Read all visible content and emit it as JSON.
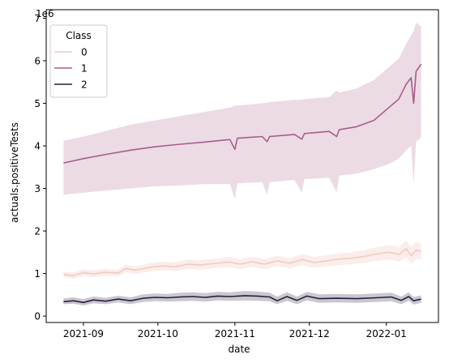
{
  "chart_data": {
    "type": "line",
    "xlabel": "date",
    "ylabel": "actuals.positiveTests",
    "y_offset_text": "1e6",
    "ylim": [
      -0.15,
      7.2
    ],
    "yticks": [
      0,
      1,
      2,
      3,
      4,
      5,
      6,
      7
    ],
    "xlim": [
      "2021-08-17",
      "2022-01-22"
    ],
    "xticks": [
      "2021-09-01",
      "2021-10-01",
      "2021-11-01",
      "2021-12-01",
      "2022-01-01"
    ],
    "xtick_labels": [
      "2021-09",
      "2021-10",
      "2021-11",
      "2021-12",
      "2022-01"
    ],
    "grid": false,
    "legend": {
      "title": "Class",
      "placement": "upper-left"
    },
    "series": [
      {
        "name": "0",
        "color": "#f0cbc4",
        "band_opacity": 0.35,
        "points": [
          [
            "2021-08-24",
            0.98,
            0.92,
            1.05
          ],
          [
            "2021-08-28",
            0.95,
            0.88,
            1.02
          ],
          [
            "2021-09-01",
            1.02,
            0.94,
            1.1
          ],
          [
            "2021-09-05",
            0.99,
            0.91,
            1.07
          ],
          [
            "2021-09-10",
            1.03,
            0.95,
            1.11
          ],
          [
            "2021-09-15",
            1.01,
            0.93,
            1.09
          ],
          [
            "2021-09-18",
            1.12,
            1.03,
            1.21
          ],
          [
            "2021-09-22",
            1.08,
            0.99,
            1.17
          ],
          [
            "2021-09-28",
            1.15,
            1.05,
            1.25
          ],
          [
            "2021-10-03",
            1.18,
            1.08,
            1.28
          ],
          [
            "2021-10-08",
            1.16,
            1.06,
            1.26
          ],
          [
            "2021-10-13",
            1.22,
            1.11,
            1.33
          ],
          [
            "2021-10-18",
            1.2,
            1.09,
            1.31
          ],
          [
            "2021-10-24",
            1.24,
            1.13,
            1.35
          ],
          [
            "2021-10-30",
            1.27,
            1.15,
            1.39
          ],
          [
            "2021-11-03",
            1.22,
            1.1,
            1.34
          ],
          [
            "2021-11-08",
            1.28,
            1.16,
            1.4
          ],
          [
            "2021-11-13",
            1.22,
            1.1,
            1.34
          ],
          [
            "2021-11-18",
            1.3,
            1.18,
            1.42
          ],
          [
            "2021-11-23",
            1.24,
            1.12,
            1.36
          ],
          [
            "2021-11-28",
            1.33,
            1.2,
            1.46
          ],
          [
            "2021-12-03",
            1.26,
            1.13,
            1.39
          ],
          [
            "2021-12-08",
            1.3,
            1.17,
            1.43
          ],
          [
            "2021-12-13",
            1.34,
            1.2,
            1.48
          ],
          [
            "2021-12-18",
            1.36,
            1.22,
            1.5
          ],
          [
            "2021-12-23",
            1.4,
            1.25,
            1.55
          ],
          [
            "2021-12-28",
            1.46,
            1.3,
            1.62
          ],
          [
            "2022-01-02",
            1.5,
            1.33,
            1.67
          ],
          [
            "2022-01-06",
            1.45,
            1.28,
            1.62
          ],
          [
            "2022-01-09",
            1.58,
            1.38,
            1.78
          ],
          [
            "2022-01-11",
            1.42,
            1.22,
            1.62
          ],
          [
            "2022-01-13",
            1.55,
            1.35,
            1.75
          ],
          [
            "2022-01-15",
            1.52,
            1.33,
            1.71
          ]
        ]
      },
      {
        "name": "1",
        "color": "#a75d8a",
        "band_opacity": 0.22,
        "points": [
          [
            "2021-08-24",
            3.6,
            2.85,
            4.12
          ],
          [
            "2021-09-01",
            3.7,
            2.9,
            4.22
          ],
          [
            "2021-09-10",
            3.8,
            2.95,
            4.35
          ],
          [
            "2021-09-20",
            3.9,
            3.0,
            4.5
          ],
          [
            "2021-09-30",
            3.98,
            3.05,
            4.6
          ],
          [
            "2021-10-10",
            4.04,
            3.07,
            4.7
          ],
          [
            "2021-10-20",
            4.09,
            3.1,
            4.8
          ],
          [
            "2021-10-30",
            4.15,
            3.1,
            4.9
          ],
          [
            "2021-11-01",
            3.92,
            2.75,
            4.95
          ],
          [
            "2021-11-02",
            4.18,
            3.12,
            4.95
          ],
          [
            "2021-11-12",
            4.22,
            3.15,
            5.0
          ],
          [
            "2021-11-14",
            4.1,
            2.85,
            5.02
          ],
          [
            "2021-11-15",
            4.22,
            3.15,
            5.03
          ],
          [
            "2021-11-25",
            4.27,
            3.2,
            5.08
          ],
          [
            "2021-11-28",
            4.16,
            2.9,
            5.08
          ],
          [
            "2021-11-29",
            4.29,
            3.22,
            5.1
          ],
          [
            "2021-12-09",
            4.34,
            3.25,
            5.15
          ],
          [
            "2021-12-12",
            4.22,
            2.9,
            5.3
          ],
          [
            "2021-12-13",
            4.38,
            3.3,
            5.25
          ],
          [
            "2021-12-20",
            4.45,
            3.35,
            5.35
          ],
          [
            "2021-12-27",
            4.6,
            3.45,
            5.55
          ],
          [
            "2022-01-03",
            4.95,
            3.6,
            5.9
          ],
          [
            "2022-01-06",
            5.1,
            3.7,
            6.05
          ],
          [
            "2022-01-09",
            5.45,
            3.9,
            6.4
          ],
          [
            "2022-01-11",
            5.6,
            4.0,
            6.6
          ],
          [
            "2022-01-12",
            5.0,
            3.1,
            6.7
          ],
          [
            "2022-01-13",
            5.75,
            4.1,
            6.9
          ],
          [
            "2022-01-15",
            5.92,
            4.2,
            6.8
          ]
        ]
      },
      {
        "name": "2",
        "color": "#2b1e3e",
        "band_opacity": 0.25,
        "points": [
          [
            "2021-08-24",
            0.34,
            0.28,
            0.42
          ],
          [
            "2021-08-28",
            0.36,
            0.29,
            0.44
          ],
          [
            "2021-09-01",
            0.32,
            0.25,
            0.4
          ],
          [
            "2021-09-05",
            0.38,
            0.3,
            0.46
          ],
          [
            "2021-09-10",
            0.35,
            0.28,
            0.43
          ],
          [
            "2021-09-15",
            0.4,
            0.32,
            0.48
          ],
          [
            "2021-09-20",
            0.36,
            0.28,
            0.44
          ],
          [
            "2021-09-25",
            0.42,
            0.33,
            0.51
          ],
          [
            "2021-09-30",
            0.44,
            0.35,
            0.53
          ],
          [
            "2021-10-05",
            0.43,
            0.34,
            0.52
          ],
          [
            "2021-10-10",
            0.45,
            0.35,
            0.55
          ],
          [
            "2021-10-15",
            0.46,
            0.36,
            0.56
          ],
          [
            "2021-10-20",
            0.44,
            0.34,
            0.54
          ],
          [
            "2021-10-25",
            0.47,
            0.37,
            0.57
          ],
          [
            "2021-10-30",
            0.46,
            0.36,
            0.56
          ],
          [
            "2021-11-05",
            0.48,
            0.37,
            0.59
          ],
          [
            "2021-11-10",
            0.47,
            0.36,
            0.58
          ],
          [
            "2021-11-15",
            0.45,
            0.35,
            0.55
          ],
          [
            "2021-11-18",
            0.36,
            0.28,
            0.46
          ],
          [
            "2021-11-22",
            0.46,
            0.36,
            0.56
          ],
          [
            "2021-11-26",
            0.37,
            0.28,
            0.46
          ],
          [
            "2021-11-30",
            0.47,
            0.37,
            0.57
          ],
          [
            "2021-12-05",
            0.41,
            0.31,
            0.51
          ],
          [
            "2021-12-12",
            0.42,
            0.32,
            0.52
          ],
          [
            "2021-12-20",
            0.41,
            0.31,
            0.51
          ],
          [
            "2021-12-28",
            0.43,
            0.33,
            0.53
          ],
          [
            "2022-01-03",
            0.45,
            0.35,
            0.55
          ],
          [
            "2022-01-07",
            0.37,
            0.28,
            0.46
          ],
          [
            "2022-01-10",
            0.46,
            0.36,
            0.56
          ],
          [
            "2022-01-12",
            0.36,
            0.27,
            0.45
          ],
          [
            "2022-01-15",
            0.4,
            0.31,
            0.49
          ]
        ]
      }
    ]
  }
}
